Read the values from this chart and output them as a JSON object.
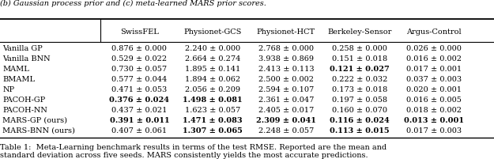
{
  "title_top": "(b) Gaussian process prior and (c) meta-learned MARS prior scores.",
  "caption": "Table 1:  Meta-Learning benchmark results in terms of the test RMSE. Reported are the mean and\nstandard deviation across five seeds. MARS consistently yields the most accurate predictions.",
  "columns": [
    "",
    "SwissFEL",
    "Physionet-GCS",
    "Physionet-HCT",
    "Berkeley-Sensor",
    "Argus-Control"
  ],
  "rows": [
    {
      "name": "Vanilla GP",
      "data": [
        "0.876 ± 0.000",
        "2.240 ± 0.000",
        "2.768 ± 0.000",
        "0.258 ± 0.000",
        "0.026 ± 0.000"
      ],
      "bold": [
        false,
        false,
        false,
        false,
        false
      ]
    },
    {
      "name": "Vanilla BNN",
      "data": [
        "0.529 ± 0.022",
        "2.664 ± 0.274",
        "3.938 ± 0.869",
        "0.151 ± 0.018",
        "0.016 ± 0.002"
      ],
      "bold": [
        false,
        false,
        false,
        false,
        false
      ]
    },
    {
      "name": "MAML",
      "data": [
        "0.730 ± 0.057",
        "1.895 ± 0.141",
        "2.413 ± 0.113",
        "0.121 ± 0.027",
        "0.017 ± 0.001"
      ],
      "bold": [
        false,
        false,
        false,
        true,
        false
      ]
    },
    {
      "name": "BMAML",
      "data": [
        "0.577 ± 0.044",
        "1.894 ± 0.062",
        "2.500 ± 0.002",
        "0.222 ± 0.032",
        "0.037 ± 0.003"
      ],
      "bold": [
        false,
        false,
        false,
        false,
        false
      ]
    },
    {
      "name": "NP",
      "data": [
        "0.471 ± 0.053",
        "2.056 ± 0.209",
        "2.594 ± 0.107",
        "0.173 ± 0.018",
        "0.020 ± 0.001"
      ],
      "bold": [
        false,
        false,
        false,
        false,
        false
      ]
    },
    {
      "name": "PACOH-GP",
      "data": [
        "0.376 ± 0.024",
        "1.498 ± 0.081",
        "2.361 ± 0.047",
        "0.197 ± 0.058",
        "0.016 ± 0.005"
      ],
      "bold": [
        true,
        true,
        false,
        false,
        false
      ]
    },
    {
      "name": "PACOH-NN",
      "data": [
        "0.437 ± 0.021",
        "1.623 ± 0.057",
        "2.405 ± 0.017",
        "0.160 ± 0.070",
        "0.018 ± 0.002"
      ],
      "bold": [
        false,
        false,
        false,
        false,
        false
      ]
    },
    {
      "name": "MARS-GP (ours)",
      "data": [
        "0.391 ± 0.011",
        "1.471 ± 0.083",
        "2.309 ± 0.041",
        "0.116 ± 0.024",
        "0.013 ± 0.001"
      ],
      "bold": [
        true,
        true,
        true,
        true,
        true
      ]
    },
    {
      "name": "MARS-BNN (ours)",
      "data": [
        "0.407 ± 0.061",
        "1.307 ± 0.065",
        "2.248 ± 0.057",
        "0.113 ± 0.015",
        "0.017 ± 0.003"
      ],
      "bold": [
        false,
        true,
        false,
        true,
        false
      ]
    }
  ],
  "bg_color": "#ffffff",
  "text_color": "#000000",
  "font_size": 7.0,
  "caption_font_size": 7.0,
  "title_font_size": 7.0
}
